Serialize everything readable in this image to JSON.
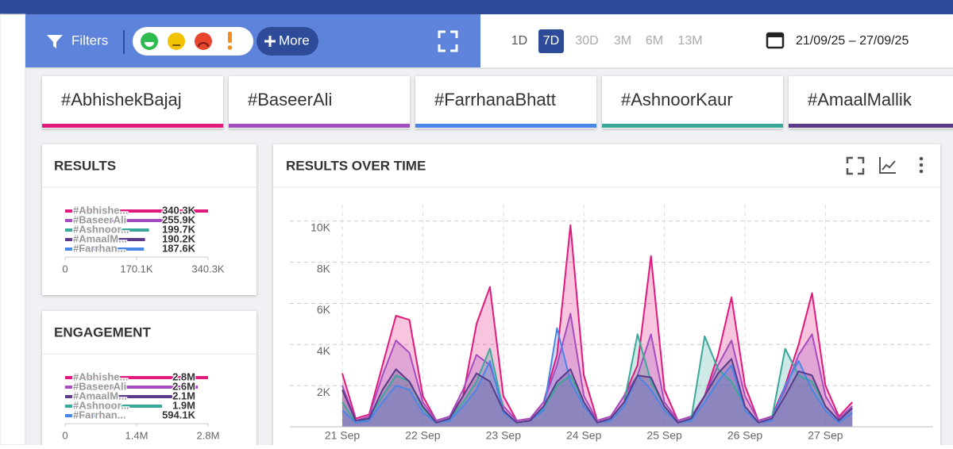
{
  "toolbar": {
    "filters": "Filters",
    "more": "More",
    "periods": [
      "1D",
      "7D",
      "30D",
      "3M",
      "6M",
      "13M"
    ],
    "active_period": "7D",
    "date_range": "21/09/25 – 27/09/25"
  },
  "tags": [
    {
      "name": "#AbhishekBajaj",
      "color": "#e0197d"
    },
    {
      "name": "#BaseerAli",
      "color": "#a54cbf"
    },
    {
      "name": "#FarrhanaBhatt",
      "color": "#4a86e8"
    },
    {
      "name": "#AshnoorKaur",
      "color": "#3aa89a"
    },
    {
      "name": "#AmaalMallik",
      "color": "#5c3a8a"
    }
  ],
  "results": {
    "title": "RESULTS",
    "chart_data": {
      "type": "bar",
      "orientation": "horizontal",
      "categories": [
        "#Abhishe...",
        "#BaseerAli",
        "#Ashnoor...",
        "#AmaalM...",
        "#Farrhan..."
      ],
      "values": [
        340300,
        255900,
        199700,
        190200,
        187600
      ],
      "value_labels": [
        "340.3K",
        "255.9K",
        "199.7K",
        "190.2K",
        "187.6K"
      ],
      "colors": [
        "#e0197d",
        "#a54cbf",
        "#3aa89a",
        "#5c3a8a",
        "#4a86e8"
      ],
      "xlim": [
        0,
        340300
      ],
      "xticks": [
        0,
        {
          "value": 170100,
          "label": "170.1K"
        },
        {
          "value": 340300,
          "label": "340.3K"
        }
      ]
    }
  },
  "engagement": {
    "title": "ENGAGEMENT",
    "chart_data": {
      "type": "bar",
      "orientation": "horizontal",
      "categories": [
        "#Abhishe...",
        "#BaseerAli",
        "#AmaalM...",
        "#Ashnoor...",
        "#Farrhan..."
      ],
      "values": [
        2800000,
        2600000,
        2100000,
        1900000,
        594100
      ],
      "value_labels": [
        "2.8M",
        "2.6M",
        "2.1M",
        "1.9M",
        "594.1K"
      ],
      "colors": [
        "#e0197d",
        "#a54cbf",
        "#5c3a8a",
        "#3aa89a",
        "#4a86e8"
      ],
      "xlim": [
        0,
        2800000
      ],
      "xticks": [
        0,
        {
          "value": 1400000,
          "label": "1.4M"
        },
        {
          "value": 2800000,
          "label": "2.8M"
        }
      ]
    }
  },
  "results_over_time": {
    "title": "RESULTS OVER TIME",
    "chart_data": {
      "type": "area",
      "categories": [
        "21 Sep",
        null,
        null,
        null,
        null,
        null,
        "22 Sep",
        null,
        null,
        null,
        null,
        null,
        "23 Sep",
        null,
        null,
        null,
        null,
        null,
        "24 Sep",
        null,
        null,
        null,
        null,
        null,
        "25 Sep",
        null,
        null,
        null,
        null,
        null,
        "26 Sep",
        null,
        null,
        null,
        null,
        null,
        "27 Sep",
        null,
        null
      ],
      "series": [
        {
          "name": "#AbhishekBajaj",
          "color": "#e0197d",
          "values": [
            2600,
            400,
            600,
            3000,
            5400,
            5200,
            1500,
            300,
            500,
            1500,
            5000,
            6800,
            1500,
            300,
            400,
            1200,
            3500,
            9800,
            2500,
            300,
            500,
            1500,
            3000,
            8300,
            1800,
            300,
            500,
            1500,
            3500,
            6300,
            2000,
            300,
            500,
            2000,
            4000,
            6500,
            2000,
            500,
            1200
          ]
        },
        {
          "name": "#BaseerAli",
          "color": "#a54cbf",
          "values": [
            2000,
            300,
            500,
            2500,
            4200,
            3600,
            1200,
            300,
            500,
            1800,
            3500,
            3000,
            1000,
            300,
            400,
            1200,
            3000,
            5500,
            1500,
            300,
            500,
            1500,
            2500,
            4500,
            1200,
            300,
            500,
            1500,
            3000,
            4200,
            1500,
            300,
            500,
            1800,
            3500,
            4500,
            1500,
            400,
            1000
          ]
        },
        {
          "name": "#AshnoorKaur",
          "color": "#3aa89a",
          "values": [
            1200,
            200,
            400,
            1500,
            2500,
            2200,
            900,
            200,
            400,
            1200,
            2200,
            3800,
            800,
            200,
            300,
            900,
            2000,
            2500,
            1200,
            200,
            400,
            1200,
            4500,
            2200,
            1000,
            200,
            400,
            4400,
            2800,
            2200,
            1000,
            200,
            400,
            3800,
            2500,
            2200,
            1000,
            300,
            900
          ]
        },
        {
          "name": "#FarrhanaBhatt",
          "color": "#4a86e8",
          "values": [
            800,
            200,
            300,
            1200,
            2000,
            1800,
            700,
            200,
            300,
            1000,
            1800,
            3200,
            700,
            200,
            300,
            800,
            4800,
            2200,
            1000,
            200,
            300,
            1000,
            2500,
            1800,
            800,
            200,
            300,
            1200,
            2200,
            3000,
            800,
            200,
            300,
            2000,
            3200,
            1800,
            800,
            200,
            700
          ]
        },
        {
          "name": "#AmaalMallik",
          "color": "#5c3a8a",
          "values": [
            1800,
            300,
            400,
            1800,
            2800,
            2200,
            1000,
            200,
            400,
            1500,
            2600,
            2200,
            800,
            200,
            300,
            1000,
            2200,
            2800,
            1200,
            200,
            400,
            1200,
            2500,
            2400,
            1000,
            200,
            400,
            1500,
            2600,
            3300,
            1000,
            200,
            400,
            1500,
            2700,
            2500,
            1000,
            300,
            900
          ]
        }
      ],
      "ylim": [
        0,
        10800
      ],
      "yticks": [
        {
          "value": 2000,
          "label": "2K"
        },
        {
          "value": 4000,
          "label": "4K"
        },
        {
          "value": 6000,
          "label": "6K"
        },
        {
          "value": 8000,
          "label": "8K"
        },
        {
          "value": 10000,
          "label": "10K"
        }
      ],
      "grid": true
    }
  }
}
